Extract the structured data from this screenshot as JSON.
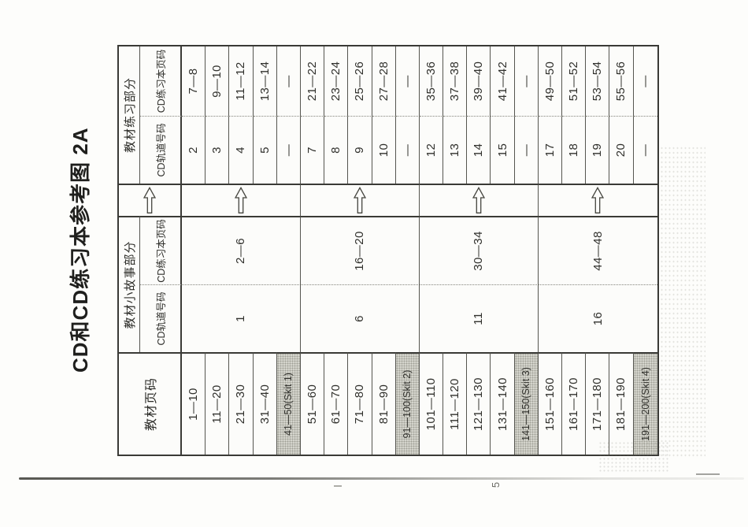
{
  "title": "CD和CD练习本参考图 2A",
  "artifacts": {
    "page_number_mark": "5"
  },
  "colors": {
    "paper": "#fcfcfa",
    "line": "#3a3a36",
    "highlight": "#d6d6ce",
    "text": "#30302c"
  },
  "table": {
    "header": {
      "page_column": "教材页码",
      "story_section": "教材小故事部分",
      "exercise_section": "教材练习部分",
      "track_label": "CD轨道号码",
      "workbook_label": "CD练习本页码",
      "arrow_icon": "right-block-arrow"
    },
    "groups": [
      {
        "story_track": "1",
        "story_workbook_pages": "2—6",
        "rows": [
          {
            "pages": "1—10",
            "track": "2",
            "workbook": "7—8",
            "highlight": false
          },
          {
            "pages": "11—20",
            "track": "3",
            "workbook": "9—10",
            "highlight": false
          },
          {
            "pages": "21—30",
            "track": "4",
            "workbook": "11—12",
            "highlight": false
          },
          {
            "pages": "31—40",
            "track": "5",
            "workbook": "13—14",
            "highlight": false
          },
          {
            "pages": "41—50(Skit 1)",
            "track": "—",
            "workbook": "—",
            "highlight": true
          }
        ]
      },
      {
        "story_track": "6",
        "story_workbook_pages": "16—20",
        "rows": [
          {
            "pages": "51—60",
            "track": "7",
            "workbook": "21—22",
            "highlight": false
          },
          {
            "pages": "61—70",
            "track": "8",
            "workbook": "23—24",
            "highlight": false
          },
          {
            "pages": "71—80",
            "track": "9",
            "workbook": "25—26",
            "highlight": false
          },
          {
            "pages": "81—90",
            "track": "10",
            "workbook": "27—28",
            "highlight": false
          },
          {
            "pages": "91—100(Skit 2)",
            "track": "—",
            "workbook": "—",
            "highlight": true
          }
        ]
      },
      {
        "story_track": "11",
        "story_workbook_pages": "30—34",
        "rows": [
          {
            "pages": "101—110",
            "track": "12",
            "workbook": "35—36",
            "highlight": false
          },
          {
            "pages": "111—120",
            "track": "13",
            "workbook": "37—38",
            "highlight": false
          },
          {
            "pages": "121—130",
            "track": "14",
            "workbook": "39—40",
            "highlight": false
          },
          {
            "pages": "131—140",
            "track": "15",
            "workbook": "41—42",
            "highlight": false
          },
          {
            "pages": "141—150(Skit 3)",
            "track": "—",
            "workbook": "—",
            "highlight": true
          }
        ]
      },
      {
        "story_track": "16",
        "story_workbook_pages": "44—48",
        "rows": [
          {
            "pages": "151—160",
            "track": "17",
            "workbook": "49—50",
            "highlight": false
          },
          {
            "pages": "161—170",
            "track": "18",
            "workbook": "51—52",
            "highlight": false
          },
          {
            "pages": "171—180",
            "track": "19",
            "workbook": "53—54",
            "highlight": false
          },
          {
            "pages": "181—190",
            "track": "20",
            "workbook": "55—56",
            "highlight": false
          },
          {
            "pages": "191—200(Skit 4)",
            "track": "—",
            "workbook": "—",
            "highlight": true
          }
        ]
      }
    ]
  }
}
